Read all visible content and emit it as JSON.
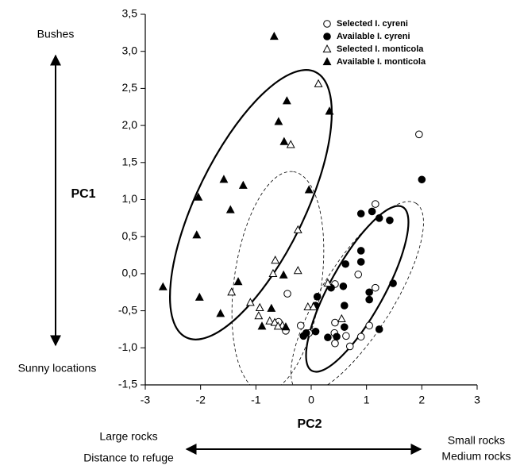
{
  "chart_data": {
    "type": "scatter",
    "xlabel": "PC2",
    "ylabel": "PC1",
    "annotations": [
      "Bushes",
      "Sunny locations",
      "Large rocks",
      "Distance to refuge",
      "Small rocks",
      "Medium rocks"
    ],
    "xlim": [
      -3,
      3
    ],
    "xticks": [
      -3,
      -2,
      -1,
      0,
      1,
      2,
      3
    ],
    "ylim": [
      -1.5,
      3.5
    ],
    "yticks": [
      {
        "value": -1.5,
        "label": "-1,5"
      },
      {
        "value": -1.0,
        "label": "-1,0"
      },
      {
        "value": -0.5,
        "label": "-0,5"
      },
      {
        "value": 0.0,
        "label": "0,0"
      },
      {
        "value": 0.5,
        "label": "0,5"
      },
      {
        "value": 1.0,
        "label": "1,0"
      },
      {
        "value": 1.5,
        "label": "1,5"
      },
      {
        "value": 2.0,
        "label": "2,0"
      },
      {
        "value": 2.5,
        "label": "2,5"
      },
      {
        "value": 3.0,
        "label": "3,0"
      },
      {
        "value": 3.5,
        "label": "3,5"
      }
    ],
    "grid": false,
    "legend": "upper right",
    "series": [
      {
        "name": "Selected I. cyreni",
        "color": "#000000",
        "marker": "circle",
        "filled": false,
        "x": [
          1.95,
          1.16,
          1.16,
          0.85,
          0.43,
          -0.43,
          -0.19,
          -0.04,
          0.43,
          0.42,
          0.63,
          0.43,
          0.7,
          0.9,
          1.05,
          -0.59,
          -0.46
        ],
        "values": [
          1.88,
          0.94,
          -0.19,
          -0.01,
          -0.14,
          -0.27,
          -0.7,
          -0.8,
          -0.66,
          -0.8,
          -0.84,
          -0.94,
          -0.98,
          -0.85,
          -0.7,
          -0.65,
          -0.77
        ]
      },
      {
        "name": "Available I. cyreni",
        "color": "#000000",
        "marker": "circle",
        "filled": true,
        "x": [
          2.0,
          0.9,
          1.1,
          1.23,
          1.42,
          0.9,
          0.9,
          0.62,
          0.36,
          0.58,
          1.05,
          1.05,
          1.48,
          0.11,
          0.08,
          0.6,
          -0.14,
          -0.09,
          0.08,
          0.3,
          0.46,
          1.23,
          0.6
        ],
        "values": [
          1.27,
          0.81,
          0.84,
          0.75,
          0.72,
          0.31,
          0.16,
          0.13,
          -0.19,
          -0.17,
          -0.25,
          -0.35,
          -0.13,
          -0.31,
          -0.43,
          -0.43,
          -0.84,
          -0.8,
          -0.78,
          -0.86,
          -0.85,
          -0.75,
          -0.72
        ]
      },
      {
        "name": "Selected I. monticola",
        "color": "#000000",
        "marker": "triangle",
        "filled": false,
        "x": [
          0.13,
          -0.37,
          -0.65,
          -0.24,
          -1.44,
          -1.1,
          -0.93,
          -0.95,
          -0.75,
          -0.66,
          -0.52,
          -0.6,
          -0.24,
          -0.69,
          -0.06,
          0.04,
          0.3,
          0.55
        ],
        "values": [
          2.56,
          1.74,
          0.18,
          0.59,
          -0.25,
          -0.39,
          -0.46,
          -0.57,
          -0.64,
          -0.66,
          -0.7,
          -0.71,
          0.04,
          0.0,
          -0.45,
          -0.45,
          -0.13,
          -0.61
        ]
      },
      {
        "name": "Available I. monticola",
        "color": "#000000",
        "marker": "triangle",
        "filled": true,
        "x": [
          -0.67,
          -0.44,
          -0.59,
          -0.49,
          0.33,
          -0.04,
          -1.58,
          -2.04,
          -1.23,
          -1.46,
          -2.07,
          -2.68,
          -2.02,
          -1.32,
          -1.64,
          -0.72,
          -0.5,
          -0.89,
          -0.46
        ],
        "values": [
          3.2,
          2.33,
          2.05,
          1.78,
          2.19,
          1.13,
          1.27,
          1.03,
          1.19,
          0.86,
          0.52,
          -0.18,
          -0.32,
          -0.11,
          -0.54,
          -0.47,
          -0.02,
          -0.71,
          -0.72
        ]
      }
    ]
  }
}
